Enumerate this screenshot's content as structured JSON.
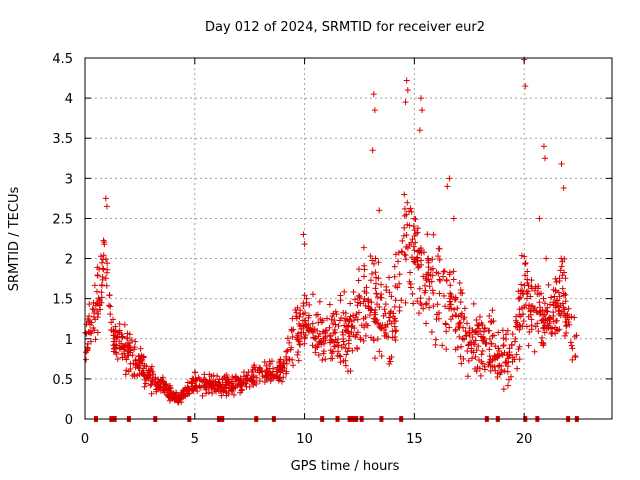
{
  "chart_data": {
    "type": "scatter",
    "title": "Day 012 of 2024, SRMTID for receiver eur2",
    "xlabel": "GPS time / hours",
    "ylabel": "SRMTID / TECUs",
    "xlim": [
      0,
      24
    ],
    "ylim": [
      0,
      4.5
    ],
    "grid": true,
    "marker": "plus",
    "color": "#dd0000",
    "x_ticks": [
      "0",
      "5",
      "10",
      "15",
      "20"
    ],
    "y_ticks": [
      "0",
      "0.5",
      "1",
      "1.5",
      "2",
      "2.5",
      "3",
      "3.5",
      "4",
      "4.5"
    ],
    "series": [
      {
        "name": "SRMTID",
        "profile": [
          {
            "x": 0.0,
            "y": 0.9,
            "spread": 0.35
          },
          {
            "x": 0.3,
            "y": 1.3,
            "spread": 0.6
          },
          {
            "x": 0.7,
            "y": 1.6,
            "spread": 0.7
          },
          {
            "x": 0.9,
            "y": 2.1,
            "spread": 0.5
          },
          {
            "x": 1.2,
            "y": 1.1,
            "spread": 0.4
          },
          {
            "x": 1.6,
            "y": 0.9,
            "spread": 0.45
          },
          {
            "x": 2.2,
            "y": 0.8,
            "spread": 0.35
          },
          {
            "x": 3.0,
            "y": 0.5,
            "spread": 0.25
          },
          {
            "x": 4.0,
            "y": 0.3,
            "spread": 0.12
          },
          {
            "x": 4.3,
            "y": 0.25,
            "spread": 0.1
          },
          {
            "x": 5.0,
            "y": 0.45,
            "spread": 0.18
          },
          {
            "x": 6.0,
            "y": 0.4,
            "spread": 0.18
          },
          {
            "x": 7.0,
            "y": 0.45,
            "spread": 0.2
          },
          {
            "x": 8.0,
            "y": 0.55,
            "spread": 0.2
          },
          {
            "x": 9.0,
            "y": 0.6,
            "spread": 0.25
          },
          {
            "x": 9.5,
            "y": 1.0,
            "spread": 0.5
          },
          {
            "x": 10.0,
            "y": 1.2,
            "spread": 0.5
          },
          {
            "x": 11.0,
            "y": 1.0,
            "spread": 0.5
          },
          {
            "x": 12.0,
            "y": 1.1,
            "spread": 0.6
          },
          {
            "x": 13.0,
            "y": 1.6,
            "spread": 1.0
          },
          {
            "x": 13.5,
            "y": 1.2,
            "spread": 0.8
          },
          {
            "x": 14.0,
            "y": 1.1,
            "spread": 0.8
          },
          {
            "x": 14.7,
            "y": 2.4,
            "spread": 1.2
          },
          {
            "x": 15.5,
            "y": 1.7,
            "spread": 0.9
          },
          {
            "x": 16.5,
            "y": 1.5,
            "spread": 0.9
          },
          {
            "x": 17.5,
            "y": 1.0,
            "spread": 0.6
          },
          {
            "x": 18.5,
            "y": 0.9,
            "spread": 0.6
          },
          {
            "x": 19.5,
            "y": 0.8,
            "spread": 0.5
          },
          {
            "x": 20.0,
            "y": 1.6,
            "spread": 0.9
          },
          {
            "x": 21.0,
            "y": 1.2,
            "spread": 0.6
          },
          {
            "x": 21.7,
            "y": 1.5,
            "spread": 0.8
          },
          {
            "x": 22.4,
            "y": 0.9,
            "spread": 0.5
          }
        ],
        "highlights": [
          [
            20.0,
            4.48
          ],
          [
            20.05,
            4.15
          ],
          [
            14.65,
            4.22
          ],
          [
            14.7,
            4.1
          ],
          [
            14.6,
            3.95
          ],
          [
            13.15,
            4.05
          ],
          [
            13.2,
            3.85
          ],
          [
            15.3,
            4.0
          ],
          [
            15.35,
            3.85
          ],
          [
            15.25,
            3.6
          ],
          [
            0.95,
            2.75
          ],
          [
            1.0,
            2.65
          ],
          [
            16.6,
            3.0
          ],
          [
            16.5,
            2.9
          ],
          [
            21.7,
            3.18
          ],
          [
            21.8,
            2.88
          ],
          [
            20.9,
            3.4
          ],
          [
            20.95,
            3.25
          ],
          [
            13.1,
            3.35
          ],
          [
            13.4,
            2.6
          ],
          [
            9.95,
            2.3
          ],
          [
            10.0,
            2.18
          ],
          [
            20.7,
            2.5
          ],
          [
            21.0,
            2.0
          ],
          [
            16.8,
            2.5
          ]
        ],
        "point_count": 1500
      }
    ],
    "gaps_at_y0": [
      0.5,
      1.2,
      1.35,
      2.0,
      3.2,
      4.75,
      6.1,
      6.25,
      7.8,
      8.6,
      10.8,
      11.5,
      12.05,
      12.2,
      12.35,
      12.6,
      13.5,
      14.4,
      18.3,
      18.8,
      20.05,
      20.6,
      22.0,
      22.4
    ]
  }
}
